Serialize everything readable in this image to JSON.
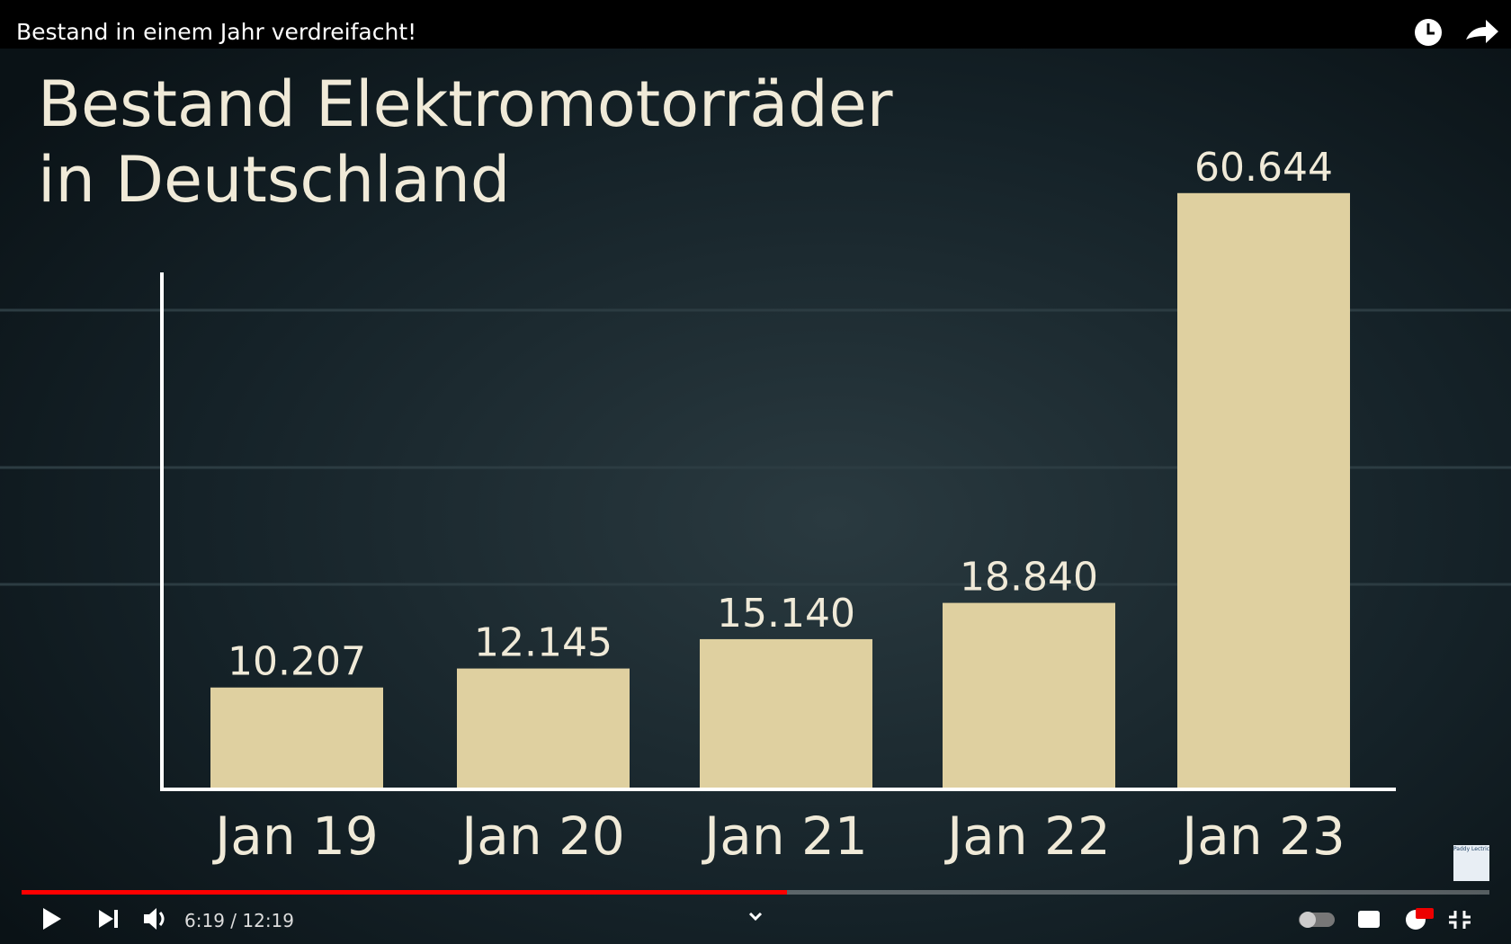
{
  "video": {
    "title": "Bestand in einem Jahr verdreifacht!",
    "time": "6:19 / 12:19",
    "channel_logo": "Paddy Lectric"
  },
  "chart_data": {
    "type": "bar",
    "title": "Bestand Elektromotorräder in Deutschland",
    "categories": [
      "Jan 19",
      "Jan 20",
      "Jan 21",
      "Jan 22",
      "Jan 23"
    ],
    "values": [
      10207,
      12145,
      15140,
      18840,
      60644
    ],
    "value_labels": [
      "10.207",
      "12.145",
      "15.140",
      "18.840",
      "60.644"
    ],
    "color": "#dfd0a0",
    "ylim": [
      0,
      62000
    ]
  }
}
